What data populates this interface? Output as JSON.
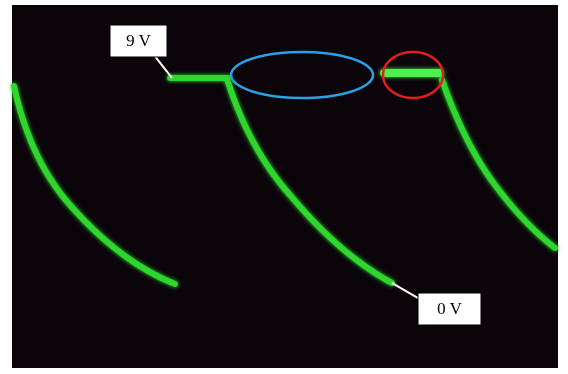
{
  "annotations": {
    "high": "9 V",
    "low": "0 V"
  }
}
